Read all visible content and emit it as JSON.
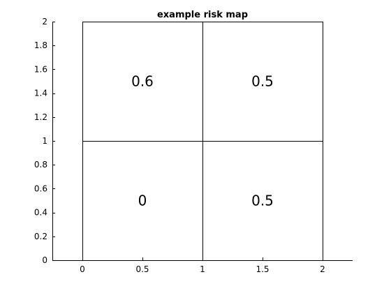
{
  "chart_data": {
    "type": "heatmap",
    "title": "example risk map",
    "xlabel": "",
    "ylabel": "",
    "xlim": [
      -0.25,
      2.25
    ],
    "ylim": [
      0,
      2
    ],
    "xticks": [
      0,
      0.5,
      1,
      1.5,
      2
    ],
    "xtick_labels": [
      "0",
      "0.5",
      "1",
      "1.5",
      "2"
    ],
    "yticks": [
      0,
      0.2,
      0.4,
      0.6,
      0.8,
      1,
      1.2,
      1.4,
      1.6,
      1.8,
      2
    ],
    "ytick_labels": [
      "0",
      "0.2",
      "0.4",
      "0.6",
      "0.8",
      "1",
      "1.2",
      "1.4",
      "1.6",
      "1.8",
      "2"
    ],
    "grid": false,
    "cells": [
      {
        "x0": 0,
        "x1": 1,
        "y0": 1,
        "y1": 2,
        "value": 0.6,
        "label": "0.6"
      },
      {
        "x0": 1,
        "x1": 2,
        "y0": 1,
        "y1": 2,
        "value": 0.5,
        "label": "0.5"
      },
      {
        "x0": 0,
        "x1": 1,
        "y0": 0,
        "y1": 1,
        "value": 0,
        "label": "0"
      },
      {
        "x0": 1,
        "x1": 2,
        "y0": 0,
        "y1": 1,
        "value": 0.5,
        "label": "0.5"
      }
    ],
    "cell_fill": "#ffffff",
    "line_color": "#000000",
    "text_color": "#000000"
  }
}
